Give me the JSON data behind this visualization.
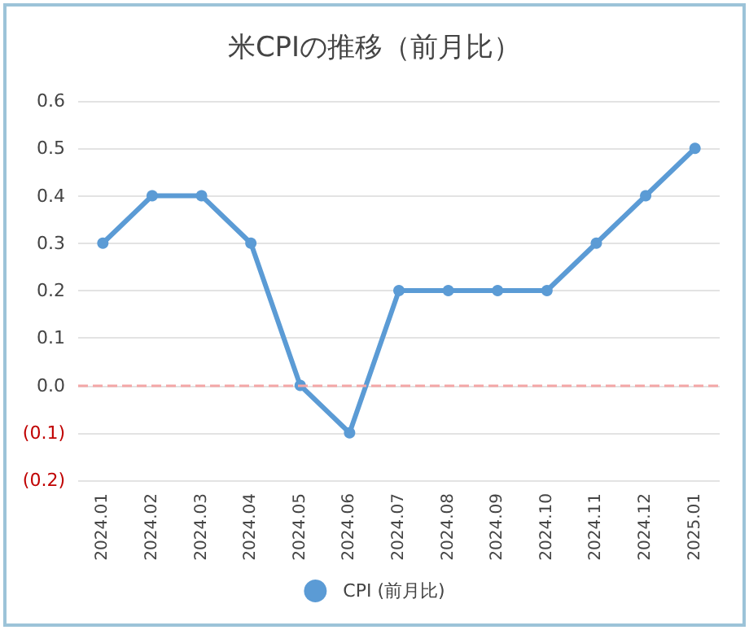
{
  "chart_data": {
    "type": "line",
    "title": "米CPIの推移（前月比）",
    "categories": [
      "2024.01",
      "2024.02",
      "2024.03",
      "2024.04",
      "2024.05",
      "2024.06",
      "2024.07",
      "2024.08",
      "2024.09",
      "2024.10",
      "2024.11",
      "2024.12",
      "2025.01"
    ],
    "series": [
      {
        "name": "CPI (前月比)",
        "color": "#5b9bd5",
        "values": [
          0.3,
          0.4,
          0.4,
          0.3,
          0.0,
          -0.1,
          0.2,
          0.2,
          0.2,
          0.2,
          0.3,
          0.4,
          0.5
        ]
      }
    ],
    "ylim": [
      -0.2,
      0.6
    ],
    "yticks": [
      {
        "value": -0.2,
        "label": "(0.2)"
      },
      {
        "value": -0.1,
        "label": "(0.1)"
      },
      {
        "value": 0,
        "label": "0.0"
      },
      {
        "value": 0.1,
        "label": "0.1"
      },
      {
        "value": 0.2,
        "label": "0.2"
      },
      {
        "value": 0.3,
        "label": "0.3"
      },
      {
        "value": 0.4,
        "label": "0.4"
      },
      {
        "value": 0.5,
        "label": "0.5"
      },
      {
        "value": 0.6,
        "label": "0.6"
      }
    ],
    "ref_lines": [
      {
        "axis": "y",
        "value": 0,
        "color": "#f4a7a7",
        "line_style": "dashed"
      }
    ],
    "grid": "y",
    "legend": "bottom",
    "marker": "circle",
    "line_style": "solid"
  }
}
